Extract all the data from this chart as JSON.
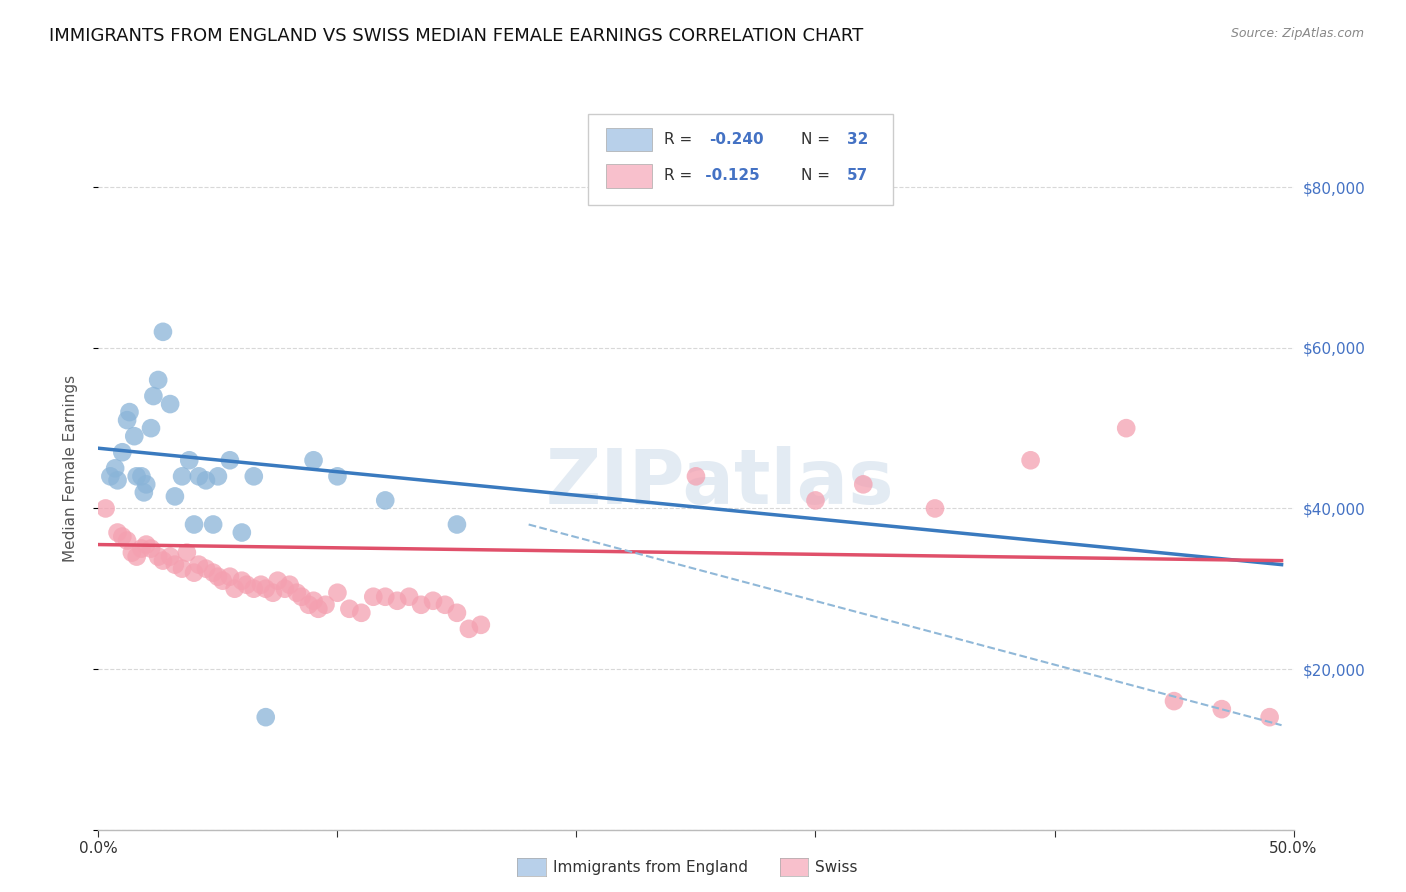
{
  "title": "IMMIGRANTS FROM ENGLAND VS SWISS MEDIAN FEMALE EARNINGS CORRELATION CHART",
  "source": "Source: ZipAtlas.com",
  "ylabel": "Median Female Earnings",
  "xlim": [
    0.0,
    0.5
  ],
  "ylim": [
    0,
    90000
  ],
  "yticks": [
    0,
    20000,
    40000,
    60000,
    80000
  ],
  "ytick_labels": [
    "",
    "$20,000",
    "$40,000",
    "$60,000",
    "$80,000"
  ],
  "xticks": [
    0.0,
    0.1,
    0.2,
    0.3,
    0.4,
    0.5
  ],
  "xtick_labels": [
    "0.0%",
    "",
    "",
    "",
    "",
    "50.0%"
  ],
  "england_color": "#8ab4d8",
  "swiss_color": "#f4a0b0",
  "england_color_legend": "#b8d0ea",
  "swiss_color_legend": "#f8c0cc",
  "watermark": "ZIPatlas",
  "england_scatter": [
    [
      0.005,
      44000
    ],
    [
      0.007,
      45000
    ],
    [
      0.008,
      43500
    ],
    [
      0.01,
      47000
    ],
    [
      0.012,
      51000
    ],
    [
      0.013,
      52000
    ],
    [
      0.015,
      49000
    ],
    [
      0.016,
      44000
    ],
    [
      0.018,
      44000
    ],
    [
      0.019,
      42000
    ],
    [
      0.02,
      43000
    ],
    [
      0.022,
      50000
    ],
    [
      0.023,
      54000
    ],
    [
      0.025,
      56000
    ],
    [
      0.027,
      62000
    ],
    [
      0.03,
      53000
    ],
    [
      0.032,
      41500
    ],
    [
      0.035,
      44000
    ],
    [
      0.038,
      46000
    ],
    [
      0.04,
      38000
    ],
    [
      0.042,
      44000
    ],
    [
      0.045,
      43500
    ],
    [
      0.048,
      38000
    ],
    [
      0.05,
      44000
    ],
    [
      0.055,
      46000
    ],
    [
      0.06,
      37000
    ],
    [
      0.065,
      44000
    ],
    [
      0.07,
      14000
    ],
    [
      0.09,
      46000
    ],
    [
      0.1,
      44000
    ],
    [
      0.12,
      41000
    ],
    [
      0.15,
      38000
    ]
  ],
  "swiss_scatter": [
    [
      0.003,
      40000
    ],
    [
      0.008,
      37000
    ],
    [
      0.01,
      36500
    ],
    [
      0.012,
      36000
    ],
    [
      0.014,
      34500
    ],
    [
      0.016,
      34000
    ],
    [
      0.018,
      35000
    ],
    [
      0.02,
      35500
    ],
    [
      0.022,
      35000
    ],
    [
      0.025,
      34000
    ],
    [
      0.027,
      33500
    ],
    [
      0.03,
      34000
    ],
    [
      0.032,
      33000
    ],
    [
      0.035,
      32500
    ],
    [
      0.037,
      34500
    ],
    [
      0.04,
      32000
    ],
    [
      0.042,
      33000
    ],
    [
      0.045,
      32500
    ],
    [
      0.048,
      32000
    ],
    [
      0.05,
      31500
    ],
    [
      0.052,
      31000
    ],
    [
      0.055,
      31500
    ],
    [
      0.057,
      30000
    ],
    [
      0.06,
      31000
    ],
    [
      0.062,
      30500
    ],
    [
      0.065,
      30000
    ],
    [
      0.068,
      30500
    ],
    [
      0.07,
      30000
    ],
    [
      0.073,
      29500
    ],
    [
      0.075,
      31000
    ],
    [
      0.078,
      30000
    ],
    [
      0.08,
      30500
    ],
    [
      0.083,
      29500
    ],
    [
      0.085,
      29000
    ],
    [
      0.088,
      28000
    ],
    [
      0.09,
      28500
    ],
    [
      0.092,
      27500
    ],
    [
      0.095,
      28000
    ],
    [
      0.1,
      29500
    ],
    [
      0.105,
      27500
    ],
    [
      0.11,
      27000
    ],
    [
      0.115,
      29000
    ],
    [
      0.12,
      29000
    ],
    [
      0.125,
      28500
    ],
    [
      0.13,
      29000
    ],
    [
      0.135,
      28000
    ],
    [
      0.14,
      28500
    ],
    [
      0.145,
      28000
    ],
    [
      0.15,
      27000
    ],
    [
      0.155,
      25000
    ],
    [
      0.16,
      25500
    ],
    [
      0.25,
      44000
    ],
    [
      0.3,
      41000
    ],
    [
      0.32,
      43000
    ],
    [
      0.35,
      40000
    ],
    [
      0.39,
      46000
    ],
    [
      0.43,
      50000
    ],
    [
      0.45,
      16000
    ],
    [
      0.47,
      15000
    ],
    [
      0.49,
      14000
    ]
  ],
  "england_trend_x": [
    0.0,
    0.495
  ],
  "england_trend_y": [
    47500,
    33000
  ],
  "swiss_trend_x": [
    0.0,
    0.495
  ],
  "swiss_trend_y": [
    35500,
    33500
  ],
  "dashed_trend_x": [
    0.18,
    0.495
  ],
  "dashed_trend_y": [
    38000,
    13000
  ],
  "background_color": "#ffffff",
  "grid_color": "#d8d8d8",
  "title_fontsize": 13,
  "axis_label_fontsize": 11
}
